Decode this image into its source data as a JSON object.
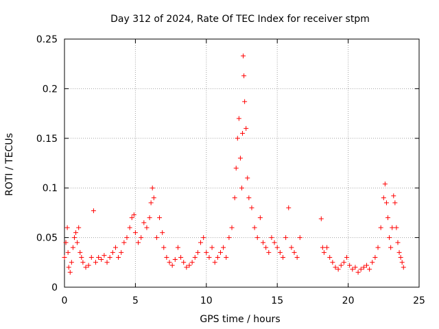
{
  "chart_data": {
    "type": "scatter",
    "title": "Day 312 of 2024, Rate Of TEC Index for receiver stpm",
    "xlabel": "GPS time / hours",
    "ylabel": "ROTI / TECUs",
    "xlim": [
      0,
      25
    ],
    "ylim": [
      0,
      0.25
    ],
    "xticks": [
      "0",
      "5",
      "10",
      "15",
      "20",
      "25"
    ],
    "yticks": [
      "0",
      "0.05",
      "0.1",
      "0.15",
      "0.2",
      "0.25"
    ],
    "grid": true,
    "marker": "+",
    "color": "#ff0000",
    "series": [
      {
        "name": "ROTI",
        "x": [
          0.0,
          0.1,
          0.2,
          0.25,
          0.3,
          0.4,
          0.5,
          0.6,
          0.7,
          0.8,
          0.9,
          1.0,
          1.1,
          1.2,
          1.3,
          1.5,
          1.7,
          1.9,
          2.05,
          2.2,
          2.4,
          2.6,
          2.8,
          3.0,
          3.2,
          3.4,
          3.6,
          3.8,
          4.0,
          4.2,
          4.4,
          4.6,
          4.75,
          4.9,
          5.0,
          5.2,
          5.4,
          5.6,
          5.8,
          6.0,
          6.1,
          6.2,
          6.3,
          6.5,
          6.7,
          6.9,
          7.0,
          7.2,
          7.4,
          7.6,
          7.8,
          8.0,
          8.2,
          8.4,
          8.6,
          8.8,
          9.0,
          9.2,
          9.4,
          9.6,
          9.8,
          10.0,
          10.2,
          10.4,
          10.6,
          10.8,
          11.0,
          11.2,
          11.4,
          11.6,
          11.8,
          12.0,
          12.1,
          12.2,
          12.3,
          12.4,
          12.5,
          12.55,
          12.6,
          12.65,
          12.7,
          12.8,
          12.9,
          13.0,
          13.2,
          13.4,
          13.6,
          13.8,
          14.0,
          14.2,
          14.4,
          14.6,
          14.8,
          15.0,
          15.2,
          15.4,
          15.6,
          15.8,
          16.0,
          16.2,
          16.4,
          16.6,
          18.1,
          18.2,
          18.3,
          18.5,
          18.7,
          18.9,
          19.1,
          19.3,
          19.5,
          19.7,
          19.9,
          20.1,
          20.3,
          20.5,
          20.7,
          20.9,
          21.1,
          21.3,
          21.5,
          21.7,
          21.9,
          22.1,
          22.3,
          22.5,
          22.6,
          22.7,
          22.8,
          22.9,
          23.0,
          23.1,
          23.2,
          23.3,
          23.4,
          23.5,
          23.6,
          23.7,
          23.8,
          23.9
        ],
        "y": [
          0.03,
          0.045,
          0.06,
          0.035,
          0.02,
          0.015,
          0.025,
          0.04,
          0.05,
          0.055,
          0.045,
          0.06,
          0.035,
          0.03,
          0.025,
          0.02,
          0.022,
          0.03,
          0.077,
          0.025,
          0.03,
          0.028,
          0.032,
          0.025,
          0.03,
          0.035,
          0.04,
          0.03,
          0.035,
          0.045,
          0.05,
          0.06,
          0.07,
          0.073,
          0.055,
          0.045,
          0.05,
          0.065,
          0.06,
          0.07,
          0.085,
          0.1,
          0.09,
          0.05,
          0.07,
          0.055,
          0.04,
          0.03,
          0.025,
          0.022,
          0.028,
          0.04,
          0.03,
          0.025,
          0.02,
          0.022,
          0.025,
          0.03,
          0.035,
          0.045,
          0.05,
          0.035,
          0.03,
          0.04,
          0.025,
          0.03,
          0.035,
          0.04,
          0.03,
          0.05,
          0.06,
          0.09,
          0.12,
          0.15,
          0.17,
          0.13,
          0.1,
          0.155,
          0.233,
          0.213,
          0.187,
          0.16,
          0.11,
          0.09,
          0.08,
          0.06,
          0.05,
          0.07,
          0.045,
          0.04,
          0.035,
          0.05,
          0.045,
          0.04,
          0.035,
          0.03,
          0.05,
          0.08,
          0.04,
          0.035,
          0.03,
          0.05,
          0.069,
          0.04,
          0.035,
          0.04,
          0.03,
          0.025,
          0.02,
          0.018,
          0.022,
          0.025,
          0.03,
          0.022,
          0.018,
          0.02,
          0.015,
          0.018,
          0.02,
          0.022,
          0.018,
          0.025,
          0.03,
          0.04,
          0.06,
          0.09,
          0.104,
          0.085,
          0.07,
          0.05,
          0.04,
          0.06,
          0.092,
          0.085,
          0.06,
          0.045,
          0.035,
          0.03,
          0.025,
          0.02
        ]
      }
    ]
  }
}
